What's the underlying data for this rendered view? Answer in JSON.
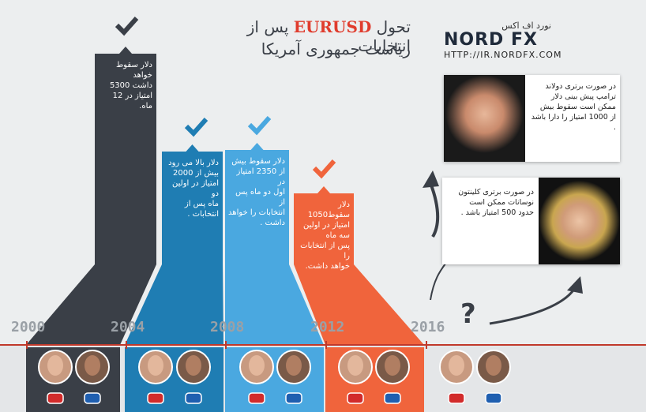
{
  "title": {
    "prefix": "تحول",
    "highlight": "EURUSD",
    "suffix": "پس از انتخابات",
    "line2": "ریاست جمهوری آمریکا"
  },
  "brand": {
    "persian": "نورد اف اکس",
    "logo": "NORD FX",
    "url": "HTTP://IR.NORDFX.COM"
  },
  "years": [
    "2000",
    "2004",
    "2008",
    "2012",
    "2016"
  ],
  "periods": [
    {
      "lines": [
        "دلار سقوط خواهد",
        "داشت 5300",
        "امتیاز در 12 ماه."
      ]
    },
    {
      "lines": [
        "دلار بالا می رود",
        "بیش از 2000",
        "امتیاز در اولین دو",
        "ماه پس از",
        "انتخابات ."
      ]
    },
    {
      "lines": [
        "دلار سقوط بیش",
        "از 2350 امتیاز در",
        "اول دو ماه پس از",
        "انتخابات را خواهد",
        "داشت ."
      ]
    },
    {
      "lines": [
        "دلار سقوط1050",
        "امتیاز در اولین سه ماه",
        "پس از انتخابات را",
        "خواهد داشت."
      ]
    }
  ],
  "scenarios": [
    {
      "lines": [
        "در صورت برتری دولاند",
        "ترامپ  پیش بینی  دلار",
        "ممکن است سقوط بیش",
        "از 1000 امتیاز را دارا باشد",
        "."
      ]
    },
    {
      "lines": [
        "در صورت برتری  کلینتون",
        "نوسانات ممکن است",
        "حدود 500 امتیاز باشد ."
      ]
    }
  ],
  "question": "?"
}
